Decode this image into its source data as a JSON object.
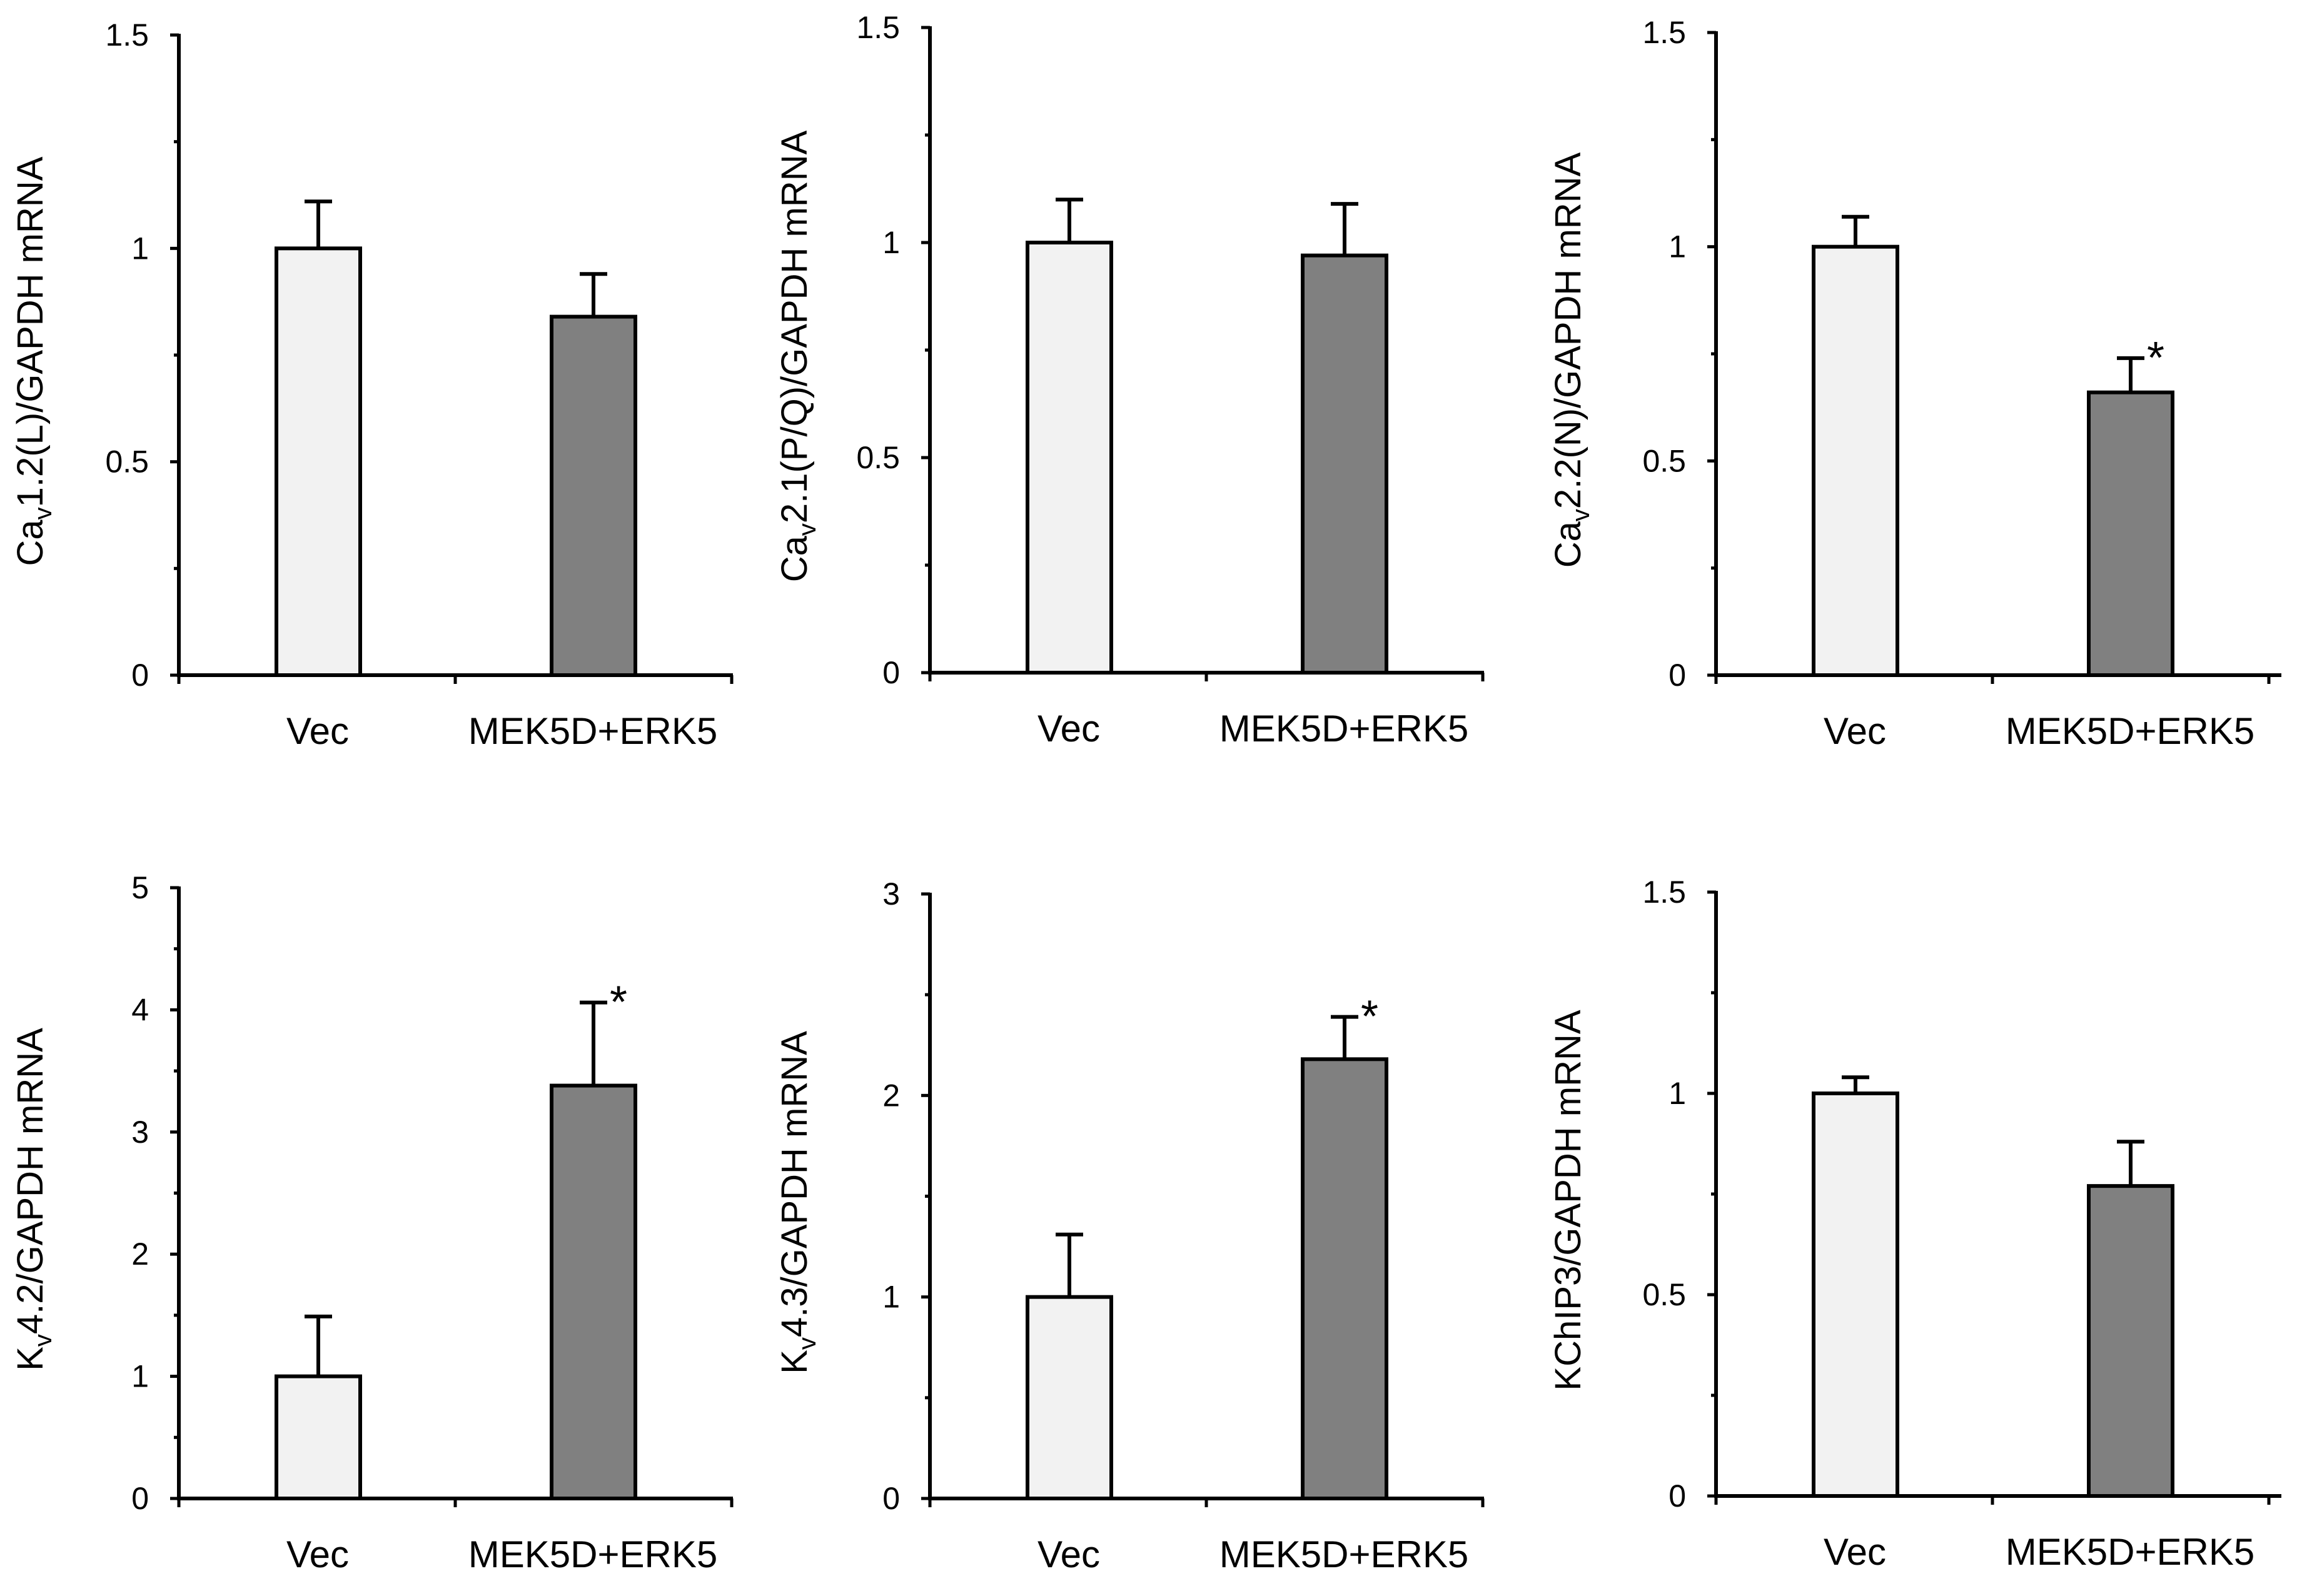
{
  "colors": {
    "vec_fill": "#f2f2f2",
    "mek_fill": "#808080",
    "stroke": "#000000",
    "background": "#ffffff"
  },
  "chart_data": [
    {
      "type": "bar",
      "categories": [
        "Vec",
        "MEK5D+ERK5"
      ],
      "values": [
        1.0,
        0.84
      ],
      "errors": [
        0.11,
        0.1
      ],
      "significant": [
        false,
        false
      ],
      "significance_symbol": "*",
      "ylim": [
        0,
        1.5
      ],
      "yticks": [
        0,
        0.5,
        1,
        1.5
      ],
      "ytick_labels": [
        "0",
        "0.5",
        "1",
        "1.5"
      ],
      "ylabel": {
        "pre": "Ca",
        "sub": "v",
        "post": "1.2(L)/GAPDH mRNA"
      }
    },
    {
      "type": "bar",
      "categories": [
        "Vec",
        "MEK5D+ERK5"
      ],
      "values": [
        1.0,
        0.97
      ],
      "errors": [
        0.1,
        0.12
      ],
      "significant": [
        false,
        false
      ],
      "significance_symbol": "*",
      "ylim": [
        0,
        1.5
      ],
      "yticks": [
        0,
        0.5,
        1,
        1.5
      ],
      "ytick_labels": [
        "0",
        "0.5",
        "1",
        "1.5"
      ],
      "ylabel": {
        "pre": "Ca",
        "sub": "v",
        "post": "2.1(P/Q)/GAPDH mRNA"
      }
    },
    {
      "type": "bar",
      "categories": [
        "Vec",
        "MEK5D+ERK5"
      ],
      "values": [
        1.0,
        0.66
      ],
      "errors": [
        0.07,
        0.08
      ],
      "significant": [
        false,
        true
      ],
      "significance_symbol": "*",
      "ylim": [
        0,
        1.5
      ],
      "yticks": [
        0,
        0.5,
        1,
        1.5
      ],
      "ytick_labels": [
        "0",
        "0.5",
        "1",
        "1.5"
      ],
      "ylabel": {
        "pre": "Ca",
        "sub": "v",
        "post": "2.2(N)/GAPDH mRNA"
      }
    },
    {
      "type": "bar",
      "categories": [
        "Vec",
        "MEK5D+ERK5"
      ],
      "values": [
        1.0,
        3.38
      ],
      "errors": [
        0.49,
        0.68
      ],
      "significant": [
        false,
        true
      ],
      "significance_symbol": "*",
      "ylim": [
        0,
        5
      ],
      "yticks": [
        0,
        1,
        2,
        3,
        4,
        5
      ],
      "ytick_labels": [
        "0",
        "1",
        "2",
        "3",
        "4",
        "5"
      ],
      "ylabel": {
        "pre": "K",
        "sub": "v",
        "post": "4.2/GAPDH mRNA"
      }
    },
    {
      "type": "bar",
      "categories": [
        "Vec",
        "MEK5D+ERK5"
      ],
      "values": [
        1.0,
        2.18
      ],
      "errors": [
        0.31,
        0.21
      ],
      "significant": [
        false,
        true
      ],
      "significance_symbol": "*",
      "ylim": [
        0,
        3
      ],
      "yticks": [
        0,
        1,
        2,
        3
      ],
      "ytick_labels": [
        "0",
        "1",
        "2",
        "3"
      ],
      "ylabel": {
        "pre": "K",
        "sub": "v",
        "post": "4.3/GAPDH mRNA"
      }
    },
    {
      "type": "bar",
      "categories": [
        "Vec",
        "MEK5D+ERK5"
      ],
      "values": [
        1.0,
        0.77
      ],
      "errors": [
        0.04,
        0.11
      ],
      "significant": [
        false,
        false
      ],
      "significance_symbol": "*",
      "ylim": [
        0,
        1.5
      ],
      "yticks": [
        0,
        0.5,
        1,
        1.5
      ],
      "ytick_labels": [
        "0",
        "0.5",
        "1",
        "1.5"
      ],
      "ylabel": {
        "pre": "KChIP3/GAPDH mRNA",
        "sub": "",
        "post": ""
      }
    }
  ]
}
